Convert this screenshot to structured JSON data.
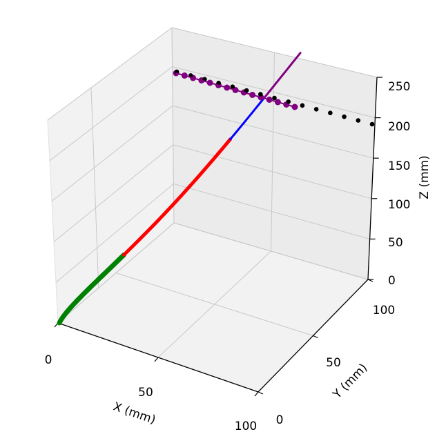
{
  "chart_data": {
    "type": "line3d",
    "title": "",
    "axes": {
      "x": {
        "label": "X (mm)",
        "ticks": [
          "0",
          "50",
          "100"
        ],
        "range": [
          0,
          100
        ]
      },
      "y": {
        "label": "Y (mm)",
        "ticks": [
          "0",
          "50",
          "100"
        ],
        "range": [
          0,
          100
        ]
      },
      "z": {
        "label": "Z (mm)",
        "ticks": [
          "0",
          "50",
          "100",
          "150",
          "200",
          "250"
        ],
        "range": [
          0,
          250
        ]
      }
    },
    "grid": true,
    "series": [
      {
        "kind": "line",
        "color": "#008000",
        "width": "thick",
        "z": [
          0,
          10,
          22,
          36,
          52,
          70,
          90
        ]
      },
      {
        "kind": "line",
        "color": "#ff0000",
        "width": "medium",
        "z": [
          90,
          115,
          140,
          160,
          180,
          195
        ]
      },
      {
        "kind": "line",
        "color": "#0000ff",
        "width": "thin",
        "z": [
          195,
          205,
          213,
          220,
          225
        ]
      },
      {
        "kind": "line",
        "color": "#800080",
        "width": "thin",
        "z": [
          225,
          240,
          255
        ]
      },
      {
        "kind": "points",
        "color": "#800080",
        "z": [
          255,
          254,
          252,
          250,
          248,
          246,
          244,
          242,
          240,
          238,
          236,
          234,
          232,
          230,
          228
        ]
      },
      {
        "kind": "points",
        "color": "#000000",
        "z": [
          255,
          251,
          247,
          243,
          239,
          235,
          231,
          227,
          223,
          219,
          215,
          211,
          207,
          203,
          200
        ]
      }
    ]
  }
}
